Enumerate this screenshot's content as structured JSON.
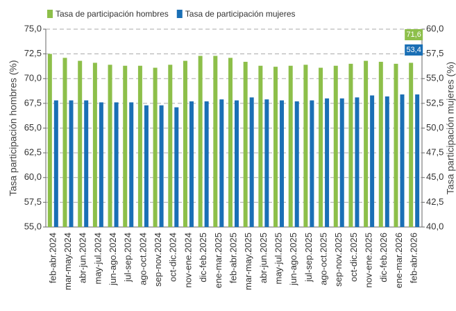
{
  "chart_data": {
    "type": "bar",
    "categories": [
      "feb-abr.2024",
      "mar-may.2024",
      "abr-jun.2024",
      "may-jul.2024",
      "jun-ago.2024",
      "jul-sep.2024",
      "ago-oct.2024",
      "sep-nov.2024",
      "oct-dic.2024",
      "nov-ene.2024",
      "dic-feb.2025",
      "ene-mar.2025",
      "feb-abr.2025",
      "mar-may.2025",
      "abr-jun.2025",
      "may-jul.2025",
      "jun-ago.2025",
      "jul-sep.2025",
      "ago-oct.2025",
      "sep-nov.2025",
      "oct-dic.2025",
      "nov-ene.2025",
      "dic-feb.2026",
      "ene-mar.2026",
      "feb-abr.2026"
    ],
    "series": [
      {
        "name": "Tasa de participación hombres",
        "color": "#8dbf4a",
        "axis": "y",
        "values": [
          72.5,
          72.1,
          71.8,
          71.6,
          71.4,
          71.3,
          71.3,
          71.1,
          71.4,
          71.8,
          72.3,
          72.3,
          72.1,
          71.7,
          71.3,
          71.2,
          71.3,
          71.4,
          71.1,
          71.3,
          71.5,
          71.8,
          71.7,
          71.5,
          71.6
        ],
        "value_labels": [
          null,
          null,
          null,
          null,
          null,
          null,
          null,
          null,
          null,
          null,
          null,
          null,
          null,
          null,
          null,
          null,
          null,
          null,
          null,
          null,
          null,
          null,
          null,
          null,
          "71,6"
        ]
      },
      {
        "name": "Tasa de participación mujeres",
        "color": "#1a6fb5",
        "axis": "y2",
        "values": [
          52.8,
          52.8,
          52.8,
          52.6,
          52.6,
          52.6,
          52.3,
          52.3,
          52.1,
          52.7,
          52.7,
          52.9,
          52.8,
          53.1,
          52.9,
          52.8,
          52.7,
          52.8,
          53.0,
          53.0,
          53.1,
          53.3,
          53.2,
          53.4,
          53.4
        ],
        "value_labels": [
          null,
          null,
          null,
          null,
          null,
          null,
          null,
          null,
          null,
          null,
          null,
          null,
          null,
          null,
          null,
          null,
          null,
          null,
          null,
          null,
          null,
          null,
          null,
          null,
          "53,4"
        ]
      }
    ],
    "y_label": "Tasa participación hombres (%)",
    "y2_label": "Tasa participación mujeres (%)",
    "ylim": [
      55,
      75
    ],
    "yticks": [
      {
        "value": 55,
        "label": "55,0"
      },
      {
        "value": 57.5,
        "label": "57,5"
      },
      {
        "value": 60,
        "label": "60,0"
      },
      {
        "value": 62.5,
        "label": "62,5"
      },
      {
        "value": 65,
        "label": "65,0"
      },
      {
        "value": 67.5,
        "label": "67,5"
      },
      {
        "value": 70,
        "label": "70,0"
      },
      {
        "value": 72.5,
        "label": "72,5"
      },
      {
        "value": 75,
        "label": "75,0"
      }
    ],
    "y2lim": [
      40,
      60
    ],
    "y2ticks": [
      {
        "value": 40,
        "label": "40,0"
      },
      {
        "value": 42.5,
        "label": "42,5"
      },
      {
        "value": 45,
        "label": "45,0"
      },
      {
        "value": 47.5,
        "label": "47,5"
      },
      {
        "value": 50,
        "label": "50,0"
      },
      {
        "value": 52.5,
        "label": "52,5"
      },
      {
        "value": 55,
        "label": "55,0"
      },
      {
        "value": 57.5,
        "label": "57,5"
      },
      {
        "value": 60,
        "label": "60,0"
      }
    ],
    "grid": true,
    "legend": "top-left"
  }
}
